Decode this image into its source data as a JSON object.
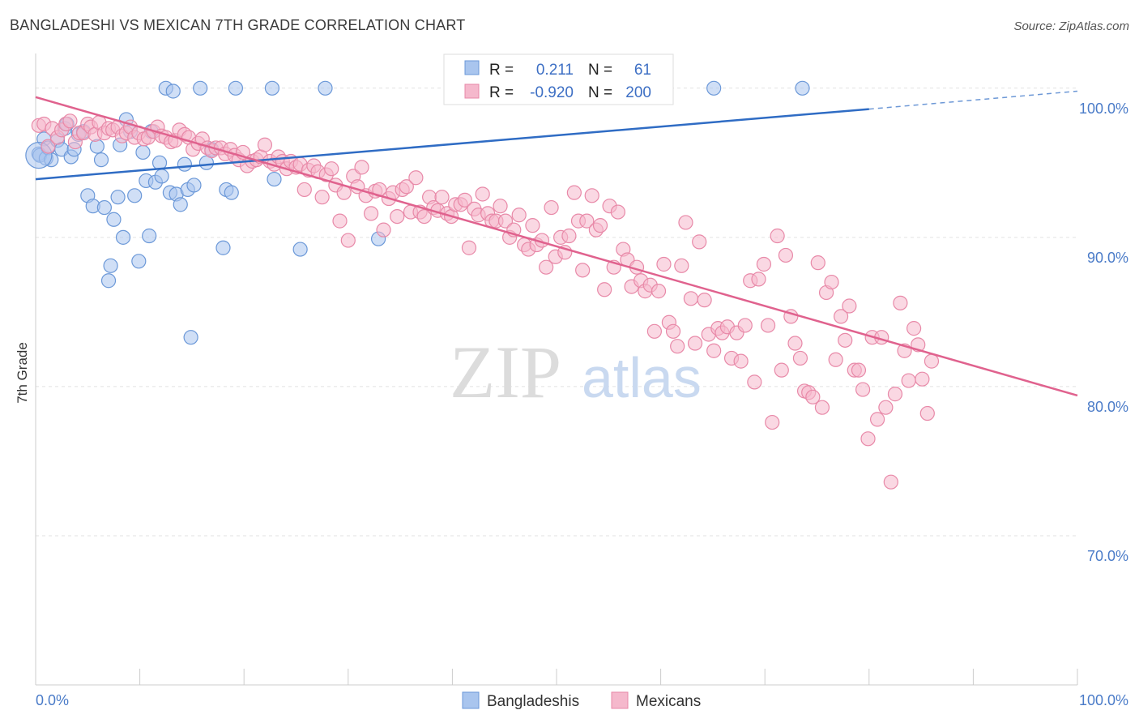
{
  "header": {
    "title": "BANGLADESHI VS MEXICAN 7TH GRADE CORRELATION CHART",
    "source": "Source: ZipAtlas.com"
  },
  "watermark": {
    "zip": "ZIP",
    "atlas": "atlas"
  },
  "colors": {
    "blue_fill": "#a9c5ee",
    "blue_stroke": "#6b98d8",
    "blue_line": "#2f6cc4",
    "pink_fill": "#f5b8cc",
    "pink_stroke": "#e889a8",
    "pink_line": "#e0628e",
    "tick_text": "#4a7bc8"
  },
  "legend": {
    "rows": [
      {
        "r_label": "R =",
        "r_value": "0.211",
        "n_label": "N =",
        "n_value": "61"
      },
      {
        "r_label": "R =",
        "r_value": "-0.920",
        "n_label": "N =",
        "n_value": "200"
      }
    ]
  },
  "chart_data": {
    "type": "scatter",
    "title": "BANGLADESHI VS MEXICAN 7TH GRADE CORRELATION CHART",
    "xlabel": "",
    "ylabel": "7th Grade",
    "xlim": [
      0,
      100
    ],
    "ylim": [
      60,
      102
    ],
    "x_tick_labels": [
      "0.0%",
      "100.0%"
    ],
    "y_ticks": [
      {
        "value": 100,
        "label": "100.0%"
      },
      {
        "value": 90,
        "label": "90.0%"
      },
      {
        "value": 80,
        "label": "80.0%"
      },
      {
        "value": 70,
        "label": "70.0%"
      }
    ],
    "grid": true,
    "legend_position": "bottom",
    "series": [
      {
        "name": "Bangladeshis",
        "r": 0.211,
        "n": 61,
        "trend": {
          "x0": 0,
          "y0": 93.9,
          "x1": 80,
          "y1": 98.6,
          "dash_to_x": 100,
          "dash_to_y": 99.8
        },
        "points": [
          [
            0.3,
            95.6
          ],
          [
            0.4,
            95.5
          ],
          [
            0.8,
            96.6
          ],
          [
            1.0,
            95.3
          ],
          [
            1.2,
            96.0
          ],
          [
            1.5,
            95.2
          ],
          [
            2.1,
            96.5
          ],
          [
            2.5,
            95.9
          ],
          [
            2.8,
            97.3
          ],
          [
            3.0,
            97.6
          ],
          [
            3.4,
            95.4
          ],
          [
            3.7,
            95.9
          ],
          [
            4.1,
            96.9
          ],
          [
            4.6,
            97.1
          ],
          [
            5.0,
            92.8
          ],
          [
            5.5,
            92.1
          ],
          [
            5.9,
            96.1
          ],
          [
            6.3,
            95.2
          ],
          [
            6.6,
            92.0
          ],
          [
            7.0,
            87.1
          ],
          [
            7.2,
            88.1
          ],
          [
            7.5,
            91.2
          ],
          [
            7.9,
            92.7
          ],
          [
            8.1,
            96.2
          ],
          [
            8.4,
            90.0
          ],
          [
            8.7,
            97.9
          ],
          [
            9.1,
            97.1
          ],
          [
            9.5,
            92.8
          ],
          [
            9.9,
            88.4
          ],
          [
            10.3,
            95.7
          ],
          [
            10.6,
            93.8
          ],
          [
            10.9,
            90.1
          ],
          [
            11.1,
            97.1
          ],
          [
            11.5,
            93.7
          ],
          [
            11.9,
            95.0
          ],
          [
            12.1,
            94.1
          ],
          [
            12.5,
            100.0
          ],
          [
            12.9,
            93.0
          ],
          [
            13.2,
            99.8
          ],
          [
            13.5,
            92.9
          ],
          [
            13.9,
            92.2
          ],
          [
            14.3,
            94.9
          ],
          [
            14.6,
            93.2
          ],
          [
            14.9,
            83.3
          ],
          [
            15.2,
            93.5
          ],
          [
            15.8,
            100.0
          ],
          [
            16.4,
            95.0
          ],
          [
            16.9,
            95.9
          ],
          [
            18.0,
            89.3
          ],
          [
            18.3,
            93.2
          ],
          [
            18.8,
            93.0
          ],
          [
            19.2,
            100.0
          ],
          [
            22.7,
            100.0
          ],
          [
            22.9,
            93.9
          ],
          [
            25.4,
            89.2
          ],
          [
            27.8,
            100.0
          ],
          [
            32.9,
            89.9
          ],
          [
            41.0,
            100.0
          ],
          [
            58.8,
            100.0
          ],
          [
            65.1,
            100.0
          ],
          [
            73.6,
            100.0
          ]
        ]
      },
      {
        "name": "Mexicans",
        "r": -0.92,
        "n": 200,
        "trend": {
          "x0": 0,
          "y0": 99.4,
          "x1": 100,
          "y1": 79.4
        },
        "points": [
          [
            0.3,
            97.5
          ],
          [
            0.8,
            97.6
          ],
          [
            1.2,
            96.1
          ],
          [
            1.6,
            97.3
          ],
          [
            2.1,
            96.7
          ],
          [
            2.5,
            97.2
          ],
          [
            2.9,
            97.6
          ],
          [
            3.3,
            97.8
          ],
          [
            3.8,
            96.4
          ],
          [
            4.2,
            97.0
          ],
          [
            4.6,
            97.0
          ],
          [
            5.0,
            97.6
          ],
          [
            5.3,
            97.4
          ],
          [
            5.7,
            96.9
          ],
          [
            6.1,
            97.7
          ],
          [
            6.6,
            97.0
          ],
          [
            7.0,
            97.3
          ],
          [
            7.4,
            97.2
          ],
          [
            7.9,
            97.4
          ],
          [
            8.3,
            96.8
          ],
          [
            8.7,
            97.0
          ],
          [
            9.1,
            97.4
          ],
          [
            9.5,
            96.7
          ],
          [
            9.9,
            97.0
          ],
          [
            10.4,
            96.6
          ],
          [
            10.8,
            96.7
          ],
          [
            11.3,
            97.1
          ],
          [
            11.7,
            97.4
          ],
          [
            12.1,
            96.8
          ],
          [
            12.5,
            96.7
          ],
          [
            13.0,
            96.4
          ],
          [
            13.4,
            96.5
          ],
          [
            13.8,
            97.2
          ],
          [
            14.3,
            96.9
          ],
          [
            14.7,
            96.7
          ],
          [
            15.1,
            95.9
          ],
          [
            15.6,
            96.3
          ],
          [
            16.0,
            96.6
          ],
          [
            16.5,
            96.0
          ],
          [
            16.9,
            95.8
          ],
          [
            17.3,
            96.0
          ],
          [
            17.8,
            96.0
          ],
          [
            18.2,
            95.6
          ],
          [
            18.7,
            95.9
          ],
          [
            19.1,
            95.5
          ],
          [
            19.5,
            95.2
          ],
          [
            19.9,
            95.7
          ],
          [
            20.3,
            94.8
          ],
          [
            20.8,
            95.1
          ],
          [
            21.2,
            95.2
          ],
          [
            21.6,
            95.4
          ],
          [
            22.0,
            96.2
          ],
          [
            22.5,
            95.1
          ],
          [
            22.9,
            94.9
          ],
          [
            23.3,
            95.4
          ],
          [
            23.7,
            95.1
          ],
          [
            24.1,
            94.6
          ],
          [
            24.5,
            95.1
          ],
          [
            25.0,
            94.7
          ],
          [
            25.4,
            94.9
          ],
          [
            25.8,
            93.2
          ],
          [
            26.2,
            94.5
          ],
          [
            26.7,
            94.8
          ],
          [
            27.1,
            94.4
          ],
          [
            27.5,
            92.7
          ],
          [
            27.9,
            94.2
          ],
          [
            28.4,
            94.6
          ],
          [
            28.8,
            93.5
          ],
          [
            29.2,
            91.1
          ],
          [
            29.6,
            93.0
          ],
          [
            30.0,
            89.8
          ],
          [
            30.5,
            94.1
          ],
          [
            30.9,
            93.4
          ],
          [
            31.3,
            94.7
          ],
          [
            31.7,
            92.8
          ],
          [
            32.2,
            91.6
          ],
          [
            32.6,
            93.1
          ],
          [
            33.0,
            93.2
          ],
          [
            33.4,
            90.5
          ],
          [
            33.9,
            92.6
          ],
          [
            34.3,
            93.0
          ],
          [
            34.7,
            91.4
          ],
          [
            35.2,
            93.2
          ],
          [
            35.6,
            93.4
          ],
          [
            36.0,
            91.7
          ],
          [
            36.5,
            94.0
          ],
          [
            36.9,
            91.7
          ],
          [
            37.3,
            91.4
          ],
          [
            37.8,
            92.7
          ],
          [
            38.2,
            92.0
          ],
          [
            38.6,
            91.8
          ],
          [
            39.0,
            92.7
          ],
          [
            39.5,
            91.6
          ],
          [
            39.9,
            91.4
          ],
          [
            40.3,
            92.2
          ],
          [
            40.8,
            92.2
          ],
          [
            41.2,
            92.5
          ],
          [
            41.6,
            89.3
          ],
          [
            42.1,
            91.9
          ],
          [
            42.5,
            91.5
          ],
          [
            42.9,
            92.9
          ],
          [
            43.4,
            91.6
          ],
          [
            43.8,
            91.1
          ],
          [
            44.2,
            91.1
          ],
          [
            44.6,
            92.1
          ],
          [
            45.1,
            91.1
          ],
          [
            45.5,
            90.0
          ],
          [
            45.9,
            90.5
          ],
          [
            46.4,
            91.5
          ],
          [
            46.9,
            89.5
          ],
          [
            47.3,
            89.2
          ],
          [
            47.7,
            90.8
          ],
          [
            48.1,
            89.5
          ],
          [
            48.6,
            89.8
          ],
          [
            49.0,
            88.0
          ],
          [
            49.5,
            92.0
          ],
          [
            49.9,
            88.7
          ],
          [
            50.4,
            90.0
          ],
          [
            50.8,
            89.0
          ],
          [
            51.2,
            90.1
          ],
          [
            51.7,
            93.0
          ],
          [
            52.1,
            91.1
          ],
          [
            52.5,
            87.8
          ],
          [
            52.9,
            91.1
          ],
          [
            53.4,
            92.8
          ],
          [
            53.8,
            90.5
          ],
          [
            54.2,
            90.8
          ],
          [
            54.6,
            86.5
          ],
          [
            55.1,
            92.1
          ],
          [
            55.5,
            88.0
          ],
          [
            55.9,
            91.7
          ],
          [
            56.4,
            89.2
          ],
          [
            56.8,
            88.5
          ],
          [
            57.2,
            86.7
          ],
          [
            57.7,
            88.0
          ],
          [
            58.1,
            87.1
          ],
          [
            58.5,
            86.4
          ],
          [
            59.0,
            86.8
          ],
          [
            59.4,
            83.7
          ],
          [
            59.8,
            86.4
          ],
          [
            60.3,
            88.2
          ],
          [
            60.8,
            84.3
          ],
          [
            61.2,
            83.7
          ],
          [
            61.6,
            82.7
          ],
          [
            62.0,
            88.1
          ],
          [
            62.4,
            91.0
          ],
          [
            62.9,
            85.9
          ],
          [
            63.3,
            82.9
          ],
          [
            63.7,
            89.7
          ],
          [
            64.2,
            85.8
          ],
          [
            64.6,
            83.5
          ],
          [
            65.1,
            82.4
          ],
          [
            65.5,
            83.9
          ],
          [
            65.9,
            83.6
          ],
          [
            66.4,
            84.0
          ],
          [
            66.8,
            81.9
          ],
          [
            67.3,
            83.6
          ],
          [
            67.7,
            81.7
          ],
          [
            68.1,
            84.1
          ],
          [
            68.6,
            87.1
          ],
          [
            69.0,
            80.3
          ],
          [
            69.4,
            87.2
          ],
          [
            69.9,
            88.2
          ],
          [
            70.3,
            84.1
          ],
          [
            70.7,
            77.6
          ],
          [
            71.2,
            90.1
          ],
          [
            71.6,
            81.1
          ],
          [
            72.0,
            88.8
          ],
          [
            72.5,
            84.7
          ],
          [
            72.9,
            82.9
          ],
          [
            73.4,
            81.9
          ],
          [
            73.8,
            79.7
          ],
          [
            74.2,
            79.6
          ],
          [
            74.6,
            79.3
          ],
          [
            75.1,
            88.3
          ],
          [
            75.5,
            78.6
          ],
          [
            75.9,
            86.3
          ],
          [
            76.4,
            87.0
          ],
          [
            76.8,
            81.8
          ],
          [
            77.3,
            84.7
          ],
          [
            77.7,
            83.1
          ],
          [
            78.1,
            85.4
          ],
          [
            78.6,
            81.1
          ],
          [
            79.0,
            81.1
          ],
          [
            79.4,
            79.8
          ],
          [
            79.9,
            76.5
          ],
          [
            80.3,
            83.3
          ],
          [
            80.8,
            77.8
          ],
          [
            81.2,
            83.3
          ],
          [
            81.6,
            78.6
          ],
          [
            82.1,
            73.6
          ],
          [
            82.5,
            79.5
          ],
          [
            83.0,
            85.6
          ],
          [
            83.4,
            82.4
          ],
          [
            83.8,
            80.4
          ],
          [
            84.3,
            83.9
          ],
          [
            84.7,
            82.8
          ],
          [
            85.1,
            80.5
          ],
          [
            85.6,
            78.2
          ],
          [
            86.0,
            81.7
          ]
        ]
      }
    ]
  },
  "bottom_legend": {
    "items": [
      "Bangladeshis",
      "Mexicans"
    ]
  }
}
